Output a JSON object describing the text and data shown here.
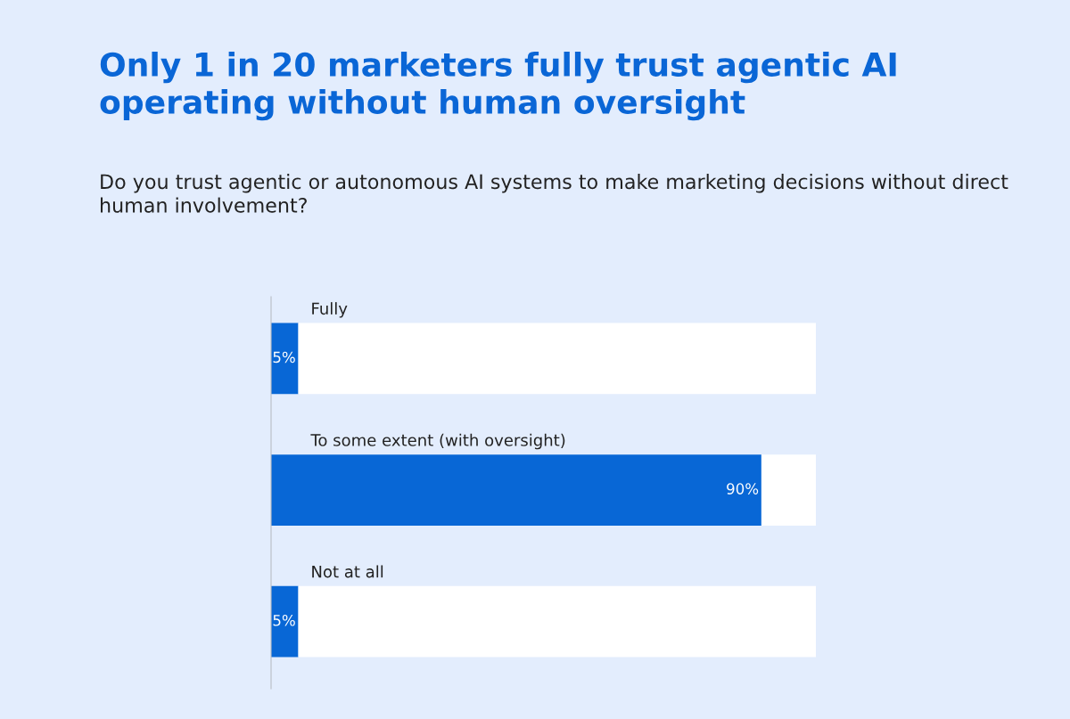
{
  "chart_data": {
    "type": "bar",
    "orientation": "horizontal",
    "stacked": true,
    "title": "Only 1 in 20 marketers fully trust agentic AI operating without human oversight",
    "subtitle": "Do you trust agentic or autonomous AI systems to make marketing decisions without direct human involvement?",
    "categories": [
      "Fully",
      "To some extent (with oversight)",
      "Not at all"
    ],
    "series": [
      {
        "color": "#0867d6",
        "values": [
          5,
          90,
          5
        ],
        "value_labels": [
          "5%",
          "90%",
          "5%"
        ]
      },
      {
        "color": "#ffffff",
        "values": [
          95,
          10,
          95
        ]
      }
    ],
    "xlim": [
      0,
      100
    ],
    "tick_labels": false
  }
}
